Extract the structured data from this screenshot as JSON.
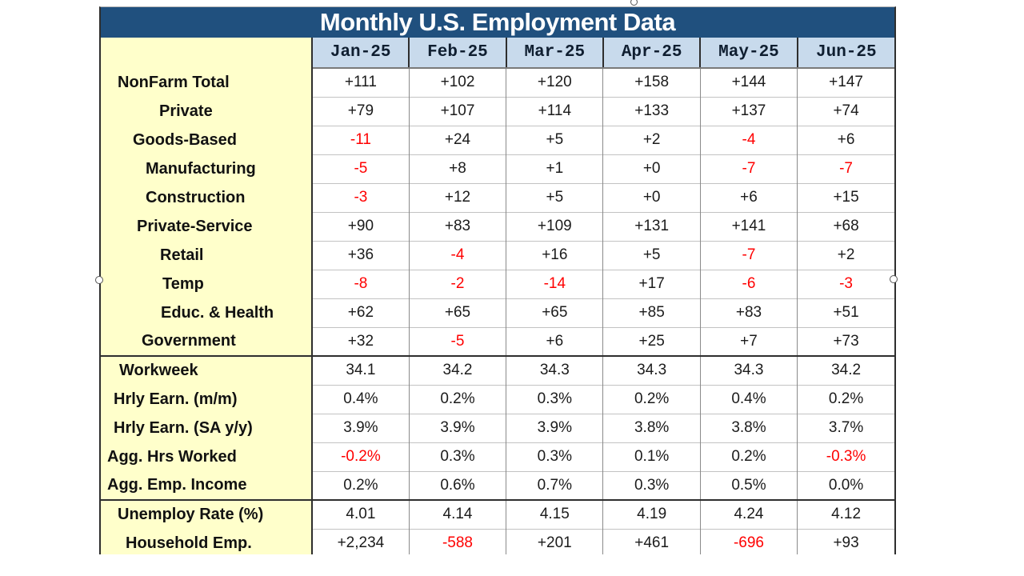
{
  "chart_data": {
    "type": "table",
    "title": "Monthly U.S. Employment Data",
    "columns": [
      "Jan-25",
      "Feb-25",
      "Mar-25",
      "Apr-25",
      "May-25",
      "Jun-25"
    ],
    "rows": [
      {
        "label": "NonFarm Total",
        "indent": 21,
        "values": [
          "+111",
          "+102",
          "+120",
          "+158",
          "+144",
          "+147"
        ]
      },
      {
        "label": "Private",
        "indent": 73,
        "values": [
          "+79",
          "+107",
          "+114",
          "+133",
          "+137",
          "+74"
        ]
      },
      {
        "label": "Goods-Based",
        "indent": 40,
        "values": [
          "-11",
          "+24",
          "+5",
          "+2",
          "-4",
          "+6"
        ]
      },
      {
        "label": "Manufacturing",
        "indent": 56,
        "values": [
          "-5",
          "+8",
          "+1",
          "+0",
          "-7",
          "-7"
        ]
      },
      {
        "label": "Construction",
        "indent": 56,
        "values": [
          "-3",
          "+12",
          "+5",
          "+0",
          "+6",
          "+15"
        ]
      },
      {
        "label": "Private-Service",
        "indent": 45,
        "values": [
          "+90",
          "+83",
          "+109",
          "+131",
          "+141",
          "+68"
        ]
      },
      {
        "label": "Retail",
        "indent": 74,
        "values": [
          "+36",
          "-4",
          "+16",
          "+5",
          "-7",
          "+2"
        ]
      },
      {
        "label": "Temp",
        "indent": 77,
        "values": [
          "-8",
          "-2",
          "-14",
          "+17",
          "-6",
          "-3"
        ]
      },
      {
        "label": "Educ. & Health",
        "indent": 75,
        "values": [
          "+62",
          "+65",
          "+65",
          "+85",
          "+83",
          "+51"
        ]
      },
      {
        "label": "Government",
        "indent": 51,
        "values": [
          "+32",
          "-5",
          "+6",
          "+25",
          "+7",
          "+73"
        ]
      },
      {
        "label": "Workweek",
        "indent": 23,
        "section_start": true,
        "values": [
          "34.1",
          "34.2",
          "34.3",
          "34.3",
          "34.3",
          "34.2"
        ]
      },
      {
        "label": "Hrly Earn. (m/m)",
        "indent": 16,
        "values": [
          "0.4%",
          "0.2%",
          "0.3%",
          "0.2%",
          "0.4%",
          "0.2%"
        ]
      },
      {
        "label": "Hrly Earn. (SA y/y)",
        "indent": 16,
        "values": [
          "3.9%",
          "3.9%",
          "3.9%",
          "3.8%",
          "3.8%",
          "3.7%"
        ]
      },
      {
        "label": "Agg. Hrs Worked",
        "indent": 8,
        "values": [
          "-0.2%",
          "0.3%",
          "0.3%",
          "0.1%",
          "0.2%",
          "-0.3%"
        ]
      },
      {
        "label": "Agg. Emp. Income",
        "indent": 8,
        "values": [
          "0.2%",
          "0.6%",
          "0.7%",
          "0.3%",
          "0.5%",
          "0.0%"
        ]
      },
      {
        "label": "Unemploy Rate (%)",
        "indent": 21,
        "section_start": true,
        "values": [
          "4.01",
          "4.14",
          "4.15",
          "4.19",
          "4.24",
          "4.12"
        ]
      },
      {
        "label": "Household Emp.",
        "indent": 31,
        "values": [
          "+2,234",
          "-588",
          "+201",
          "+461",
          "-696",
          "+93"
        ]
      }
    ]
  },
  "colors": {
    "navy": "#20507E",
    "header_blue": "#C8DAEC",
    "label_yellow": "#FFFFCB",
    "negative_red": "#FF0000",
    "grid_light": "#C2C2C2",
    "grid_mid": "#8A8A8A",
    "line_dark": "#2E2E2E"
  }
}
